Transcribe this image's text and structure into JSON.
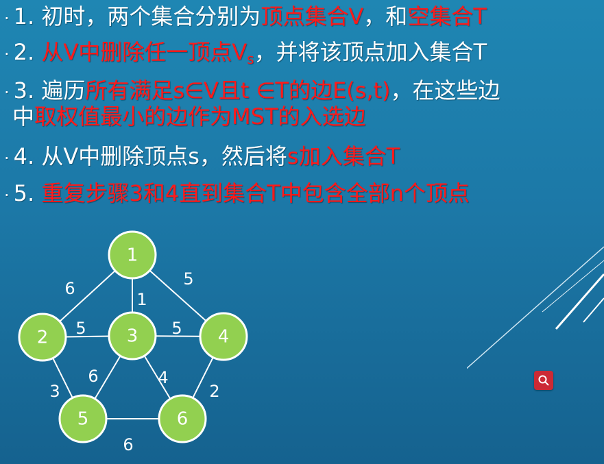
{
  "steps": [
    {
      "num": "1.",
      "parts": [
        {
          "t": "初时，两个集合分别为",
          "red": false
        },
        {
          "t": "顶点集合V",
          "red": true
        },
        {
          "t": "，和",
          "red": false
        },
        {
          "t": "空集合T",
          "red": true
        }
      ]
    },
    {
      "num": "2.",
      "parts": [
        {
          "t": "从V中删除任一顶点V",
          "red": true
        },
        {
          "t": "s",
          "red": true,
          "sub": true
        },
        {
          "t": "，并将该顶点加入集合T",
          "red": false
        }
      ]
    },
    {
      "num": "3.",
      "parts": [
        {
          "t": "遍历",
          "red": false
        },
        {
          "t": "所有满足s∈V且t ∈T的边E(s,t)",
          "red": true
        },
        {
          "t": "，在这些边",
          "red": false
        }
      ]
    },
    {
      "num": "",
      "parts": [
        {
          "t": "中",
          "red": false
        },
        {
          "t": "取权值最小的边作为MST的入选边",
          "red": true
        }
      ]
    },
    {
      "num": "4.",
      "parts": [
        {
          "t": "从V中删除顶点s，然后将",
          "red": false
        },
        {
          "t": "s加入集合T",
          "red": true
        }
      ]
    },
    {
      "num": "5.",
      "parts": [
        {
          "t": "重复步骤3和4直到",
          "red": true
        },
        {
          "t": "集合T中包含全部n个顶点",
          "red": true
        }
      ]
    }
  ],
  "graph": {
    "nodes": [
      {
        "id": "1"
      },
      {
        "id": "2"
      },
      {
        "id": "3"
      },
      {
        "id": "4"
      },
      {
        "id": "5"
      },
      {
        "id": "6"
      }
    ],
    "edges": [
      {
        "from": "1",
        "to": "2",
        "w": "6"
      },
      {
        "from": "1",
        "to": "3",
        "w": "1"
      },
      {
        "from": "1",
        "to": "4",
        "w": "5"
      },
      {
        "from": "2",
        "to": "3",
        "w": "5"
      },
      {
        "from": "3",
        "to": "4",
        "w": "5"
      },
      {
        "from": "2",
        "to": "5",
        "w": "3"
      },
      {
        "from": "3",
        "to": "5",
        "w": "6"
      },
      {
        "from": "3",
        "to": "6",
        "w": "4"
      },
      {
        "from": "4",
        "to": "6",
        "w": "2"
      },
      {
        "from": "5",
        "to": "6",
        "w": "6"
      }
    ],
    "node_fill": "#92d050",
    "node_stroke": "#ffffff",
    "edge_color": "#ffffff"
  },
  "colors": {
    "red": "#ff1a1a",
    "background": "#1c78a7"
  },
  "icons": {
    "search": "search-icon"
  }
}
